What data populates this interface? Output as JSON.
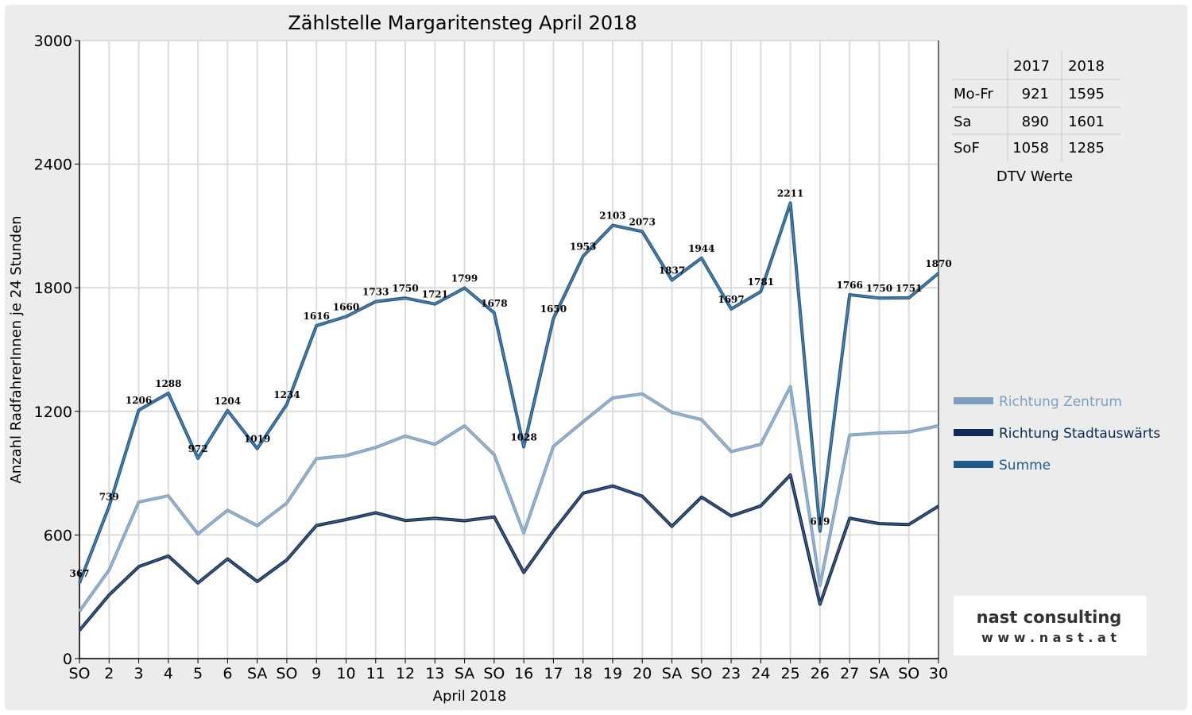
{
  "chart_data": {
    "type": "line",
    "title": "Zählstelle Margaritensteg April 2018",
    "xlabel": "April 2018",
    "ylabel": "Anzahl RadfahrerInnen je 24 Stunden",
    "ylim": [
      0,
      3000
    ],
    "yticks": [
      0,
      600,
      1200,
      1800,
      2400,
      3000
    ],
    "grid": true,
    "legend_position": "right",
    "categories": [
      "SO",
      "2",
      "3",
      "4",
      "5",
      "6",
      "SA",
      "SO",
      "9",
      "10",
      "11",
      "12",
      "13",
      "SA",
      "SO",
      "16",
      "17",
      "18",
      "19",
      "20",
      "SA",
      "SO",
      "23",
      "24",
      "25",
      "26",
      "27",
      "SA",
      "SO",
      "30"
    ],
    "category_colors": [
      "#e00000",
      "#e00000",
      "#000000",
      "#000000",
      "#000000",
      "#000000",
      "#000000",
      "#e00000",
      "#000000",
      "#000000",
      "#000000",
      "#000000",
      "#000000",
      "#000000",
      "#e00000",
      "#000000",
      "#000000",
      "#000000",
      "#000000",
      "#000000",
      "#000000",
      "#e00000",
      "#000000",
      "#000000",
      "#000000",
      "#000000",
      "#000000",
      "#000000",
      "#e00000",
      "#000000"
    ],
    "series": [
      {
        "name": "Richtung Zentrum",
        "color": "#7f9fbf",
        "values": [
          230,
          430,
          760,
          790,
          605,
          720,
          645,
          755,
          970,
          985,
          1025,
          1080,
          1040,
          1130,
          990,
          610,
          1030,
          1150,
          1265,
          1285,
          1195,
          1160,
          1005,
          1040,
          1320,
          355,
          1085,
          1095,
          1100,
          1130
        ]
      },
      {
        "name": "Richtung Stadtauswärts",
        "color": "#0e2a55",
        "values": [
          137,
          309,
          446,
          498,
          367,
          484,
          374,
          479,
          646,
          675,
          708,
          670,
          681,
          669,
          688,
          418,
          620,
          803,
          838,
          788,
          642,
          784,
          692,
          741,
          891,
          264,
          681,
          655,
          651,
          740
        ]
      },
      {
        "name": "Summe",
        "color": "#1f5a8a",
        "values": [
          367,
          739,
          1206,
          1288,
          972,
          1204,
          1019,
          1234,
          1616,
          1660,
          1733,
          1750,
          1721,
          1799,
          1678,
          1028,
          1650,
          1953,
          2103,
          2073,
          1837,
          1944,
          1697,
          1781,
          2211,
          619,
          1766,
          1750,
          1751,
          1870
        ]
      }
    ],
    "data_labels": [
      "367",
      "739",
      "1206",
      "1288",
      "972",
      "1204",
      "1019",
      "1234",
      "1616",
      "1660",
      "1733",
      "1750",
      "1721",
      "1799",
      "1678",
      "1028",
      "1650",
      "1953",
      "2103",
      "2073",
      "1837",
      "1944",
      "1697",
      "1781",
      "2211",
      "619",
      "1766",
      "1750",
      "1751",
      "1870"
    ]
  },
  "dtv_table": {
    "headers": [
      "",
      "2017",
      "2018"
    ],
    "rows": [
      {
        "label": "Mo-Fr",
        "v2017": "921",
        "v2018": "1595"
      },
      {
        "label": "Sa",
        "v2017": "890",
        "v2018": "1601"
      },
      {
        "label": "SoF",
        "v2017": "1058",
        "v2018": "1285"
      }
    ],
    "caption": "DTV Werte"
  },
  "logo": {
    "brand": "nast consulting",
    "url": "w w w . n a s t . a t",
    "brand_color": "#c00000"
  }
}
